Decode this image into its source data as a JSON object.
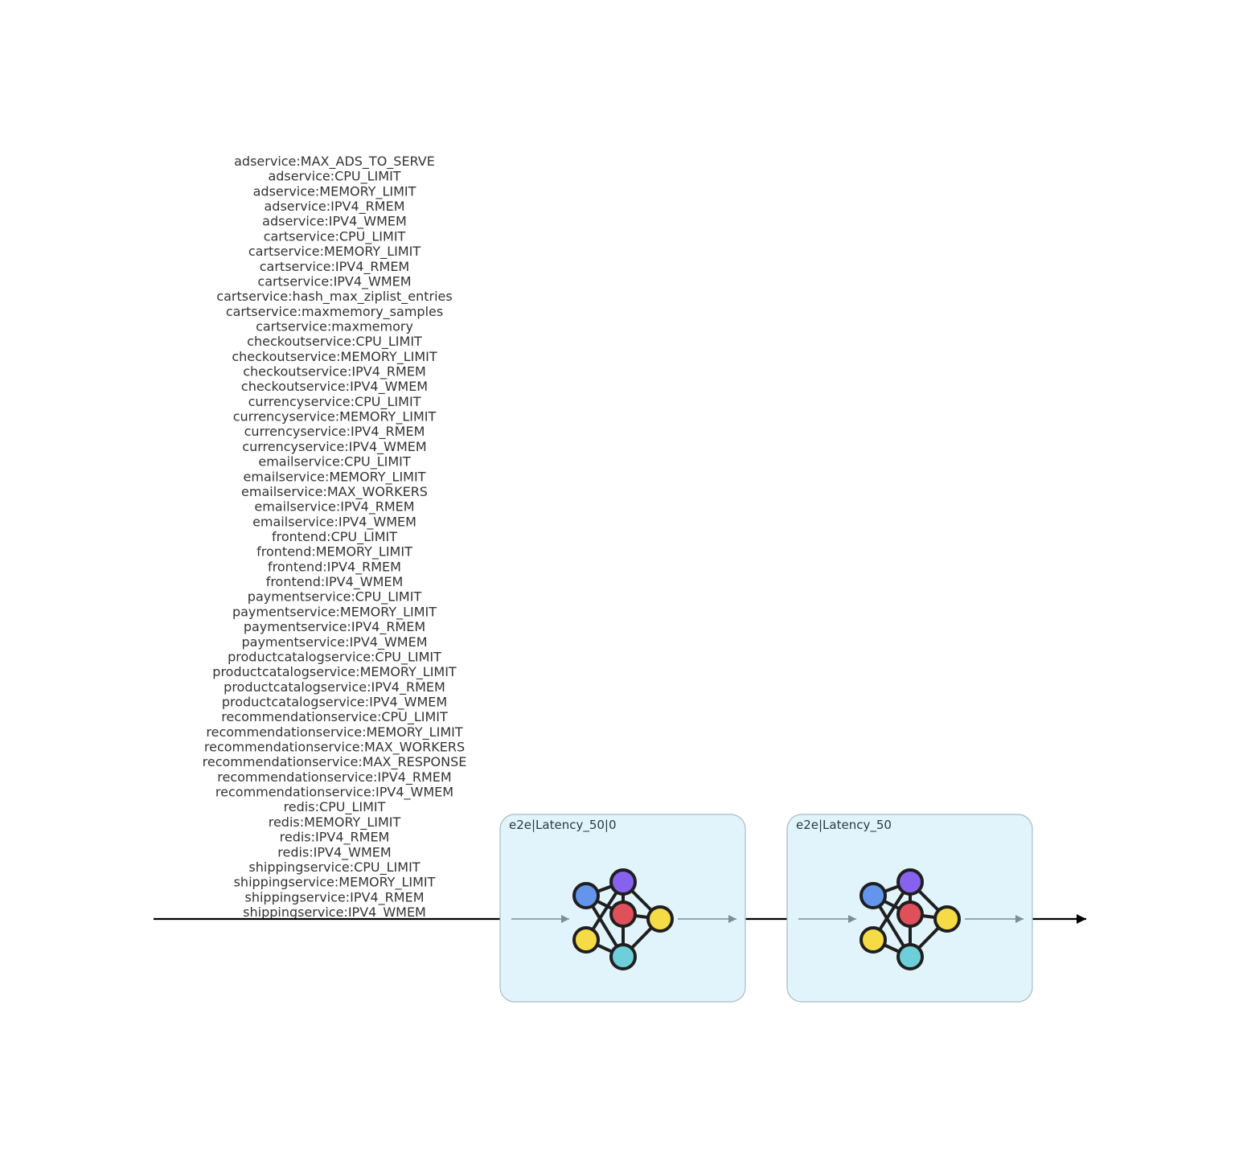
{
  "input_parameters": [
    "adservice:MAX_ADS_TO_SERVE",
    "adservice:CPU_LIMIT",
    "adservice:MEMORY_LIMIT",
    "adservice:IPV4_RMEM",
    "adservice:IPV4_WMEM",
    "cartservice:CPU_LIMIT",
    "cartservice:MEMORY_LIMIT",
    "cartservice:IPV4_RMEM",
    "cartservice:IPV4_WMEM",
    "cartservice:hash_max_ziplist_entries",
    "cartservice:maxmemory_samples",
    "cartservice:maxmemory",
    "checkoutservice:CPU_LIMIT",
    "checkoutservice:MEMORY_LIMIT",
    "checkoutservice:IPV4_RMEM",
    "checkoutservice:IPV4_WMEM",
    "currencyservice:CPU_LIMIT",
    "currencyservice:MEMORY_LIMIT",
    "currencyservice:IPV4_RMEM",
    "currencyservice:IPV4_WMEM",
    "emailservice:CPU_LIMIT",
    "emailservice:MEMORY_LIMIT",
    "emailservice:MAX_WORKERS",
    "emailservice:IPV4_RMEM",
    "emailservice:IPV4_WMEM",
    "frontend:CPU_LIMIT",
    "frontend:MEMORY_LIMIT",
    "frontend:IPV4_RMEM",
    "frontend:IPV4_WMEM",
    "paymentservice:CPU_LIMIT",
    "paymentservice:MEMORY_LIMIT",
    "paymentservice:IPV4_RMEM",
    "paymentservice:IPV4_WMEM",
    "productcatalogservice:CPU_LIMIT",
    "productcatalogservice:MEMORY_LIMIT",
    "productcatalogservice:IPV4_RMEM",
    "productcatalogservice:IPV4_WMEM",
    "recommendationservice:CPU_LIMIT",
    "recommendationservice:MEMORY_LIMIT",
    "recommendationservice:MAX_WORKERS",
    "recommendationservice:MAX_RESPONSE",
    "recommendationservice:IPV4_RMEM",
    "recommendationservice:IPV4_WMEM",
    "redis:CPU_LIMIT",
    "redis:MEMORY_LIMIT",
    "redis:IPV4_RMEM",
    "redis:IPV4_WMEM",
    "shippingservice:CPU_LIMIT",
    "shippingservice:MEMORY_LIMIT",
    "shippingservice:IPV4_RMEM",
    "shippingservice:IPV4_WMEM"
  ],
  "models": [
    {
      "title": "e2e|Latency_50|0"
    },
    {
      "title": "e2e|Latency_50"
    }
  ],
  "colors": {
    "box_fill": "#e1f3fb",
    "box_stroke": "#a9bcc6",
    "node_blue": "#6495ed",
    "node_purple": "#8662ee",
    "node_red": "#e0505a",
    "node_yellow": "#f5dc46",
    "node_cyan": "#6ecfda",
    "node_outline": "#1f1f1f",
    "arrow_main": "#000000",
    "arrow_inner": "#7f8c96"
  }
}
